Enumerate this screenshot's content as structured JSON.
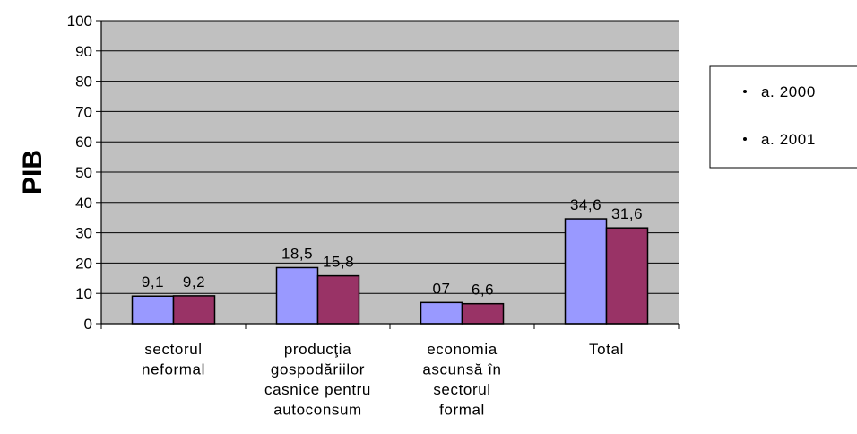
{
  "chart_data": {
    "type": "bar",
    "ylabel": "PIB",
    "xlabel": "",
    "ylim": [
      0,
      100
    ],
    "yticks": [
      0,
      10,
      20,
      30,
      40,
      50,
      60,
      70,
      80,
      90,
      100
    ],
    "grid": true,
    "legend_position": "right",
    "categories": [
      [
        "sectorul",
        "neformal"
      ],
      [
        "producţia",
        "gospodăriilor",
        "casnice pentru",
        "autoconsum"
      ],
      [
        "economia",
        "ascunsă în",
        "sectorul",
        "formal"
      ],
      [
        "Total"
      ]
    ],
    "series": [
      {
        "name": "a. 2000",
        "values": [
          9.1,
          18.5,
          7.0,
          34.6
        ],
        "labels": [
          "9,1",
          "18,5",
          "07",
          "34,6"
        ],
        "color": "#9999ff"
      },
      {
        "name": "a. 2001",
        "values": [
          9.2,
          15.8,
          6.6,
          31.6
        ],
        "labels": [
          "9,2",
          "15,8",
          "6,6",
          "31,6"
        ],
        "color": "#993366"
      }
    ],
    "colors": {
      "plot_background": "#c0c0c0",
      "gridline": "#000000",
      "bar_outline": "#000000"
    }
  }
}
